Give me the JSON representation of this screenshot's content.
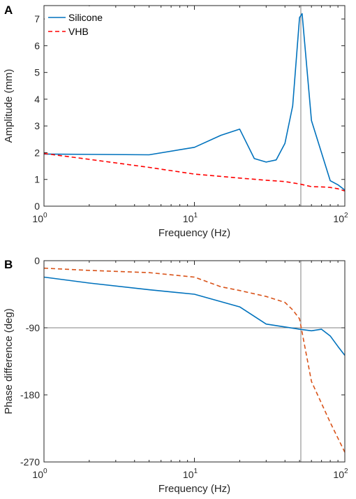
{
  "colors": {
    "silicone": "#0072BD",
    "vhb_a": "#FF0000",
    "vhb_b": "#D95319",
    "axis": "#262626",
    "refline": "#808080"
  },
  "chart_data": [
    {
      "panel": "A",
      "type": "line",
      "xlabel": "Frequency (Hz)",
      "ylabel": "Amplitude (mm)",
      "xscale": "log",
      "xlim": [
        1,
        100
      ],
      "ylim": [
        0,
        7.5
      ],
      "xticks": [
        {
          "base": "10",
          "exp": "0",
          "value": 1
        },
        {
          "base": "10",
          "exp": "1",
          "value": 10
        },
        {
          "base": "10",
          "exp": "2",
          "value": 100
        }
      ],
      "yticks": [
        {
          "label": "0",
          "value": 0
        },
        {
          "label": "1",
          "value": 1
        },
        {
          "label": "2",
          "value": 2
        },
        {
          "label": "3",
          "value": 3
        },
        {
          "label": "4",
          "value": 4
        },
        {
          "label": "5",
          "value": 5
        },
        {
          "label": "6",
          "value": 6
        },
        {
          "label": "7",
          "value": 7
        }
      ],
      "reference_lines": [
        {
          "axis": "x",
          "value": 51
        }
      ],
      "legend_position": "top-left",
      "series": [
        {
          "name": "Silicone",
          "style": "solid",
          "x": [
            1,
            5,
            10,
            15,
            20,
            25,
            30,
            35,
            40,
            45,
            50,
            52,
            60,
            80,
            90,
            100
          ],
          "y": [
            1.95,
            1.92,
            2.2,
            2.65,
            2.88,
            1.78,
            1.65,
            1.73,
            2.35,
            3.75,
            7.05,
            7.2,
            3.2,
            0.95,
            0.8,
            0.6
          ]
        },
        {
          "name": "VHB",
          "style": "dashed",
          "x": [
            1,
            2,
            5,
            10,
            20,
            30,
            40,
            50,
            60,
            70,
            80,
            90,
            100
          ],
          "y": [
            1.97,
            1.75,
            1.45,
            1.2,
            1.05,
            0.97,
            0.92,
            0.83,
            0.73,
            0.72,
            0.7,
            0.65,
            0.57
          ]
        }
      ]
    },
    {
      "panel": "B",
      "type": "line",
      "xlabel": "Frequency (Hz)",
      "ylabel": "Phase difference (deg)",
      "xscale": "log",
      "xlim": [
        1,
        100
      ],
      "ylim": [
        -270,
        0
      ],
      "xticks": [
        {
          "base": "10",
          "exp": "0",
          "value": 1
        },
        {
          "base": "10",
          "exp": "1",
          "value": 10
        },
        {
          "base": "10",
          "exp": "2",
          "value": 100
        }
      ],
      "yticks": [
        {
          "label": "0",
          "value": 0
        },
        {
          "label": "-90",
          "value": -90
        },
        {
          "label": "-180",
          "value": -180
        },
        {
          "label": "-270",
          "value": -270
        }
      ],
      "reference_lines": [
        {
          "axis": "x",
          "value": 51
        },
        {
          "axis": "y",
          "value": -90
        }
      ],
      "series": [
        {
          "style": "solid",
          "x": [
            1,
            2,
            5,
            10,
            20,
            30,
            50,
            60,
            70,
            80,
            90,
            100
          ],
          "y": [
            -22,
            -30,
            -39,
            -45,
            -62,
            -85,
            -92,
            -94,
            -92,
            -101,
            -115,
            -127
          ]
        },
        {
          "style": "dashed",
          "x": [
            1,
            2,
            5,
            10,
            15,
            20,
            30,
            40,
            45,
            50,
            60,
            80,
            100
          ],
          "y": [
            -10,
            -13,
            -16,
            -22,
            -35,
            -40,
            -48,
            -56,
            -66,
            -78,
            -162,
            -217,
            -257
          ]
        }
      ]
    }
  ]
}
